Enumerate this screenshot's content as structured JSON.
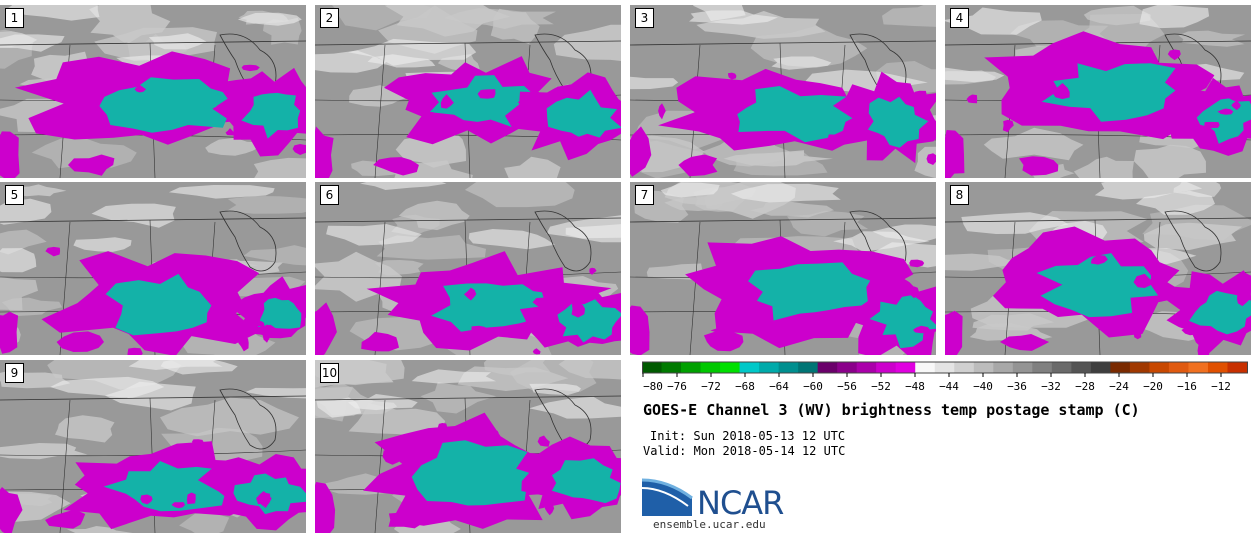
{
  "panels": [
    {
      "label": "1"
    },
    {
      "label": "2"
    },
    {
      "label": "3"
    },
    {
      "label": "4"
    },
    {
      "label": "5"
    },
    {
      "label": "6"
    },
    {
      "label": "7"
    },
    {
      "label": "8"
    },
    {
      "label": "9"
    },
    {
      "label": "10"
    }
  ],
  "colorbar": {
    "ticks": [
      "−80",
      "−76",
      "−72",
      "−68",
      "−64",
      "−60",
      "−56",
      "−52",
      "−48",
      "−44",
      "−40",
      "−36",
      "−32",
      "−28",
      "−24",
      "−20",
      "−16",
      "−12"
    ],
    "colors": [
      "#005a00",
      "#007a00",
      "#00a000",
      "#00c800",
      "#00e000",
      "#00c8c8",
      "#00aaaa",
      "#008f8f",
      "#007575",
      "#6a006a",
      "#8a008a",
      "#aa00aa",
      "#cc00cc",
      "#e000e0",
      "#f8f8f8",
      "#e4e4e4",
      "#d0d0d0",
      "#bcbcbc",
      "#a8a8a8",
      "#949494",
      "#808080",
      "#6a6a6a",
      "#545454",
      "#3e3e3e",
      "#7a2a00",
      "#a03800",
      "#c84800",
      "#e05a10",
      "#f07020",
      "#e05000",
      "#c83000"
    ]
  },
  "colors": {
    "map_background": "#999999",
    "dry_light": "#c9c9c9",
    "moist": "#cc00cc",
    "cold_top": "#14b2a8",
    "borders": "#333333",
    "ncar_blue": "#1f4f8f"
  },
  "title": "GOES-E Channel 3 (WV) brightness temp postage stamp (C)",
  "init": "Init: Sun 2018-05-13 12 UTC",
  "valid": "Valid: Mon 2018-05-14 12 UTC",
  "logo": {
    "text": "NCAR"
  },
  "website": "ensemble.ucar.edu"
}
